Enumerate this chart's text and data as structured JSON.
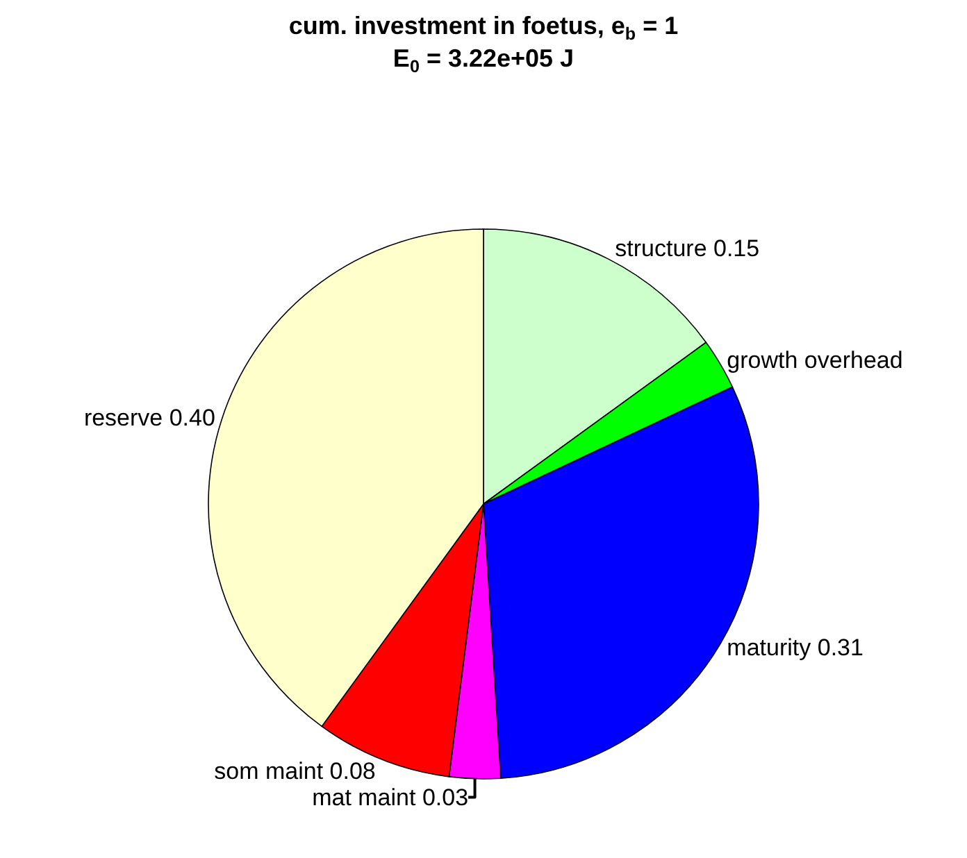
{
  "chart_data": {
    "type": "pie",
    "title": "cum. investment in foetus, e$_{b}$ = 1",
    "subtitle": "E$_{0}$ = 3.22e+05 J",
    "categories": [
      "structure",
      "growth overhead",
      "maturity",
      "mat maint",
      "som maint",
      "reserve"
    ],
    "values": [
      0.15,
      0.03,
      0.31,
      0.03,
      0.08,
      0.4
    ],
    "value_labels": [
      "0.15",
      null,
      "0.31",
      "0.03",
      "0.08",
      "0.40"
    ],
    "colors": [
      "#ccffcc",
      "#00ff00",
      "#0000ff",
      "#ff00ff",
      "#ff0000",
      "#ffffcc"
    ],
    "legend": false
  }
}
